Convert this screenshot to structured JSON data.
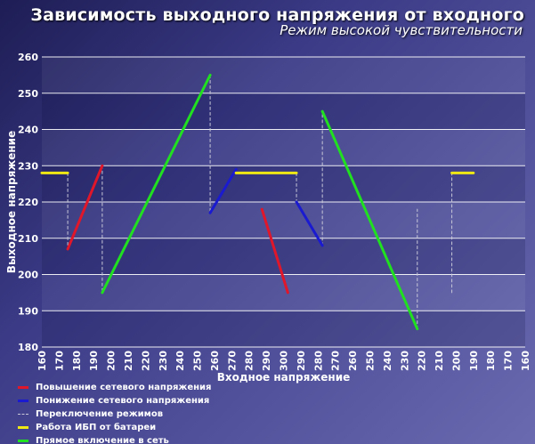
{
  "chart_data": {
    "type": "line",
    "title": "Зависимость выходного напряжения от входного",
    "subtitle": "Режим высокой чувствительности",
    "xlabel": "Входное напряжение",
    "ylabel": "Выходное напряжение",
    "ylim": [
      180,
      260
    ],
    "ytick_labels": [
      "260",
      "250",
      "240",
      "230",
      "220",
      "210",
      "200",
      "190",
      "180"
    ],
    "x_tick_labels": [
      "160",
      "170",
      "180",
      "190",
      "200",
      "210",
      "220",
      "230",
      "240",
      "250",
      "260",
      "270",
      "280",
      "290",
      "300",
      "290",
      "280",
      "270",
      "260",
      "250",
      "240",
      "230",
      "220",
      "210",
      "200",
      "190",
      "180",
      "170",
      "160"
    ],
    "grid": true,
    "legend_position": "bottom-left",
    "colors": {
      "raise": "#e0162a",
      "lower": "#1a1ad0",
      "switch": "#c8c8d8",
      "battery": "#f0e814",
      "direct": "#20e020"
    },
    "series": [
      {
        "name": "Повышение сетевого напряжения",
        "color_key": "raise",
        "style": "solid",
        "segments": [
          [
            {
              "i": 3,
              "y": 207
            },
            {
              "i": 7,
              "y": 230
            }
          ],
          [
            {
              "i": 25.5,
              "y": 218
            },
            {
              "i": 28.5,
              "y": 195
            }
          ]
        ]
      },
      {
        "name": "Понижение сетевого напряжения",
        "color_key": "lower",
        "style": "solid",
        "segments": [
          [
            {
              "i": 19.5,
              "y": 217
            },
            {
              "i": 22.5,
              "y": 229
            }
          ],
          [
            {
              "i": 29.5,
              "y": 220
            },
            {
              "i": 32.5,
              "y": 208
            }
          ]
        ]
      },
      {
        "name": "Переключение режимов",
        "color_key": "switch",
        "style": "dashed",
        "segments": [
          [
            {
              "i": 3,
              "y": 228
            },
            {
              "i": 3,
              "y": 207
            }
          ],
          [
            {
              "i": 7,
              "y": 230
            },
            {
              "i": 7,
              "y": 195
            }
          ],
          [
            {
              "i": 19.5,
              "y": 255
            },
            {
              "i": 19.5,
              "y": 217
            }
          ],
          [
            {
              "i": 29.5,
              "y": 228
            },
            {
              "i": 29.5,
              "y": 220
            }
          ],
          [
            {
              "i": 32.5,
              "y": 208
            },
            {
              "i": 32.5,
              "y": 245
            }
          ],
          [
            {
              "i": 43.5,
              "y": 185
            },
            {
              "i": 43.5,
              "y": 218
            }
          ],
          [
            {
              "i": 47.5,
              "y": 195
            },
            {
              "i": 47.5,
              "y": 228
            }
          ]
        ]
      },
      {
        "name": "Работа ИБП от батареи",
        "color_key": "battery",
        "style": "solid",
        "segments": [
          [
            {
              "i": 0,
              "y": 228
            },
            {
              "i": 3,
              "y": 228
            }
          ],
          [
            {
              "i": 22.5,
              "y": 228
            },
            {
              "i": 29.5,
              "y": 228
            }
          ],
          [
            {
              "i": 47.5,
              "y": 228
            },
            {
              "i": 50,
              "y": 228
            }
          ]
        ]
      },
      {
        "name": "Прямое включение в сеть",
        "color_key": "direct",
        "style": "solid",
        "segments": [
          [
            {
              "i": 7,
              "y": 195
            },
            {
              "i": 19.5,
              "y": 255
            }
          ],
          [
            {
              "i": 32.5,
              "y": 245
            },
            {
              "i": 43.5,
              "y": 185
            }
          ]
        ]
      }
    ]
  }
}
